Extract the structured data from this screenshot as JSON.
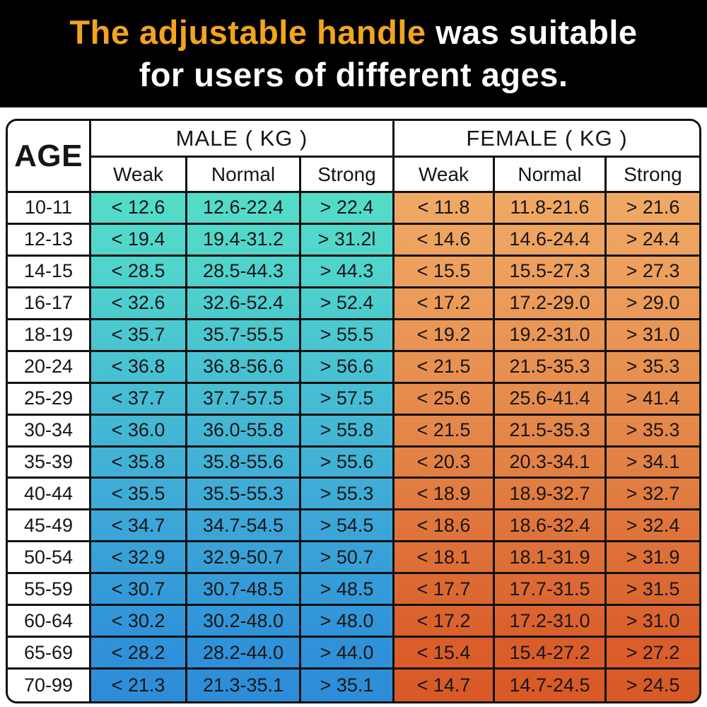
{
  "banner": {
    "line1_highlight": "The adjustable handle",
    "line1_rest": " was suitable",
    "line2": "for users of different ages."
  },
  "colors": {
    "banner_bg": "#000000",
    "title_highlight": "#F3A41E",
    "title_text": "#FFFFFF",
    "grid_line": "#111111",
    "male_gradient": [
      "#55DCC8",
      "#51D6CB",
      "#41AFD7",
      "#3092D9",
      "#2D8CD8"
    ],
    "female_gradient": [
      "#F0A966",
      "#EEA25F",
      "#E28044",
      "#DA5E2B",
      "#D85926"
    ]
  },
  "chart_data": {
    "type": "table",
    "title": "The adjustable handle was suitable for users of different ages.",
    "age_label": "AGE",
    "groups": [
      {
        "label": "MALE ( KG )",
        "sub": [
          "Weak",
          "Normal",
          "Strong"
        ]
      },
      {
        "label": "FEMALE ( KG )",
        "sub": [
          "Weak",
          "Normal",
          "Strong"
        ]
      }
    ],
    "columns": [
      "AGE",
      "Male Weak",
      "Male Normal",
      "Male Strong",
      "Female Weak",
      "Female Normal",
      "Female Strong"
    ],
    "rows": [
      {
        "age": "10-11",
        "values": [
          "< 12.6",
          "12.6-22.4",
          "> 22.4",
          "< 11.8",
          "11.8-21.6",
          "> 21.6"
        ]
      },
      {
        "age": "12-13",
        "values": [
          "< 19.4",
          "19.4-31.2",
          "> 31.2l",
          "< 14.6",
          "14.6-24.4",
          "> 24.4"
        ]
      },
      {
        "age": "14-15",
        "values": [
          "< 28.5",
          "28.5-44.3",
          "> 44.3",
          "< 15.5",
          "15.5-27.3",
          "> 27.3"
        ]
      },
      {
        "age": "16-17",
        "values": [
          "< 32.6",
          "32.6-52.4",
          "> 52.4",
          "< 17.2",
          "17.2-29.0",
          "> 29.0"
        ]
      },
      {
        "age": "18-19",
        "values": [
          "< 35.7",
          "35.7-55.5",
          "> 55.5",
          "< 19.2",
          "19.2-31.0",
          "> 31.0"
        ]
      },
      {
        "age": "20-24",
        "values": [
          "< 36.8",
          "36.8-56.6",
          "> 56.6",
          "< 21.5",
          "21.5-35.3",
          "> 35.3"
        ]
      },
      {
        "age": "25-29",
        "values": [
          "< 37.7",
          "37.7-57.5",
          "> 57.5",
          "< 25.6",
          "25.6-41.4",
          "> 41.4"
        ]
      },
      {
        "age": "30-34",
        "values": [
          "< 36.0",
          "36.0-55.8",
          "> 55.8",
          "< 21.5",
          "21.5-35.3",
          "> 35.3"
        ]
      },
      {
        "age": "35-39",
        "values": [
          "< 35.8",
          "35.8-55.6",
          "> 55.6",
          "< 20.3",
          "20.3-34.1",
          "> 34.1"
        ]
      },
      {
        "age": "40-44",
        "values": [
          "< 35.5",
          "35.5-55.3",
          "> 55.3",
          "< 18.9",
          "18.9-32.7",
          "> 32.7"
        ]
      },
      {
        "age": "45-49",
        "values": [
          "< 34.7",
          "34.7-54.5",
          "> 54.5",
          "< 18.6",
          "18.6-32.4",
          "> 32.4"
        ]
      },
      {
        "age": "50-54",
        "values": [
          "< 32.9",
          "32.9-50.7",
          "> 50.7",
          "< 18.1",
          "18.1-31.9",
          "> 31.9"
        ]
      },
      {
        "age": "55-59",
        "values": [
          "< 30.7",
          "30.7-48.5",
          "> 48.5",
          "< 17.7",
          "17.7-31.5",
          "> 31.5"
        ]
      },
      {
        "age": "60-64",
        "values": [
          "< 30.2",
          "30.2-48.0",
          "> 48.0",
          "< 17.2",
          "17.2-31.0",
          "> 31.0"
        ]
      },
      {
        "age": "65-69",
        "values": [
          "< 28.2",
          "28.2-44.0",
          "> 44.0",
          "< 15.4",
          "15.4-27.2",
          "> 27.2"
        ]
      },
      {
        "age": "70-99",
        "values": [
          "< 21.3",
          "21.3-35.1",
          "> 35.1",
          "< 14.7",
          "14.7-24.5",
          "> 24.5"
        ]
      }
    ]
  }
}
